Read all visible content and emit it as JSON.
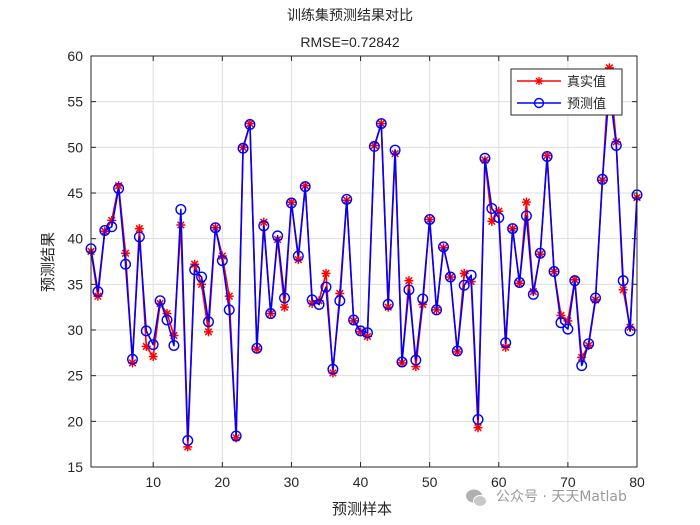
{
  "chart_data": {
    "type": "line",
    "title": "训练集预测结果对比",
    "subtitle": "RMSE=0.72842",
    "xlabel": "预测样本",
    "ylabel": "预测结果",
    "xlim": [
      1,
      80
    ],
    "ylim": [
      15,
      60
    ],
    "xticks": [
      10,
      20,
      30,
      40,
      50,
      60,
      70,
      80
    ],
    "yticks": [
      15,
      20,
      25,
      30,
      35,
      40,
      45,
      50,
      55,
      60
    ],
    "grid": true,
    "legend_position": "top-right",
    "x": [
      1,
      2,
      3,
      4,
      5,
      6,
      7,
      8,
      9,
      10,
      11,
      12,
      13,
      14,
      15,
      16,
      17,
      18,
      19,
      20,
      21,
      22,
      23,
      24,
      25,
      26,
      27,
      28,
      29,
      30,
      31,
      32,
      33,
      34,
      35,
      36,
      37,
      38,
      39,
      40,
      41,
      42,
      43,
      44,
      45,
      46,
      47,
      48,
      49,
      50,
      51,
      52,
      53,
      54,
      55,
      56,
      57,
      58,
      59,
      60,
      61,
      62,
      63,
      64,
      65,
      66,
      67,
      68,
      69,
      70,
      71,
      72,
      73,
      74,
      75,
      76,
      77,
      78,
      79,
      80
    ],
    "series": [
      {
        "name": "真实值",
        "color": "#ff0000",
        "marker": "asterisk",
        "values": [
          38.6,
          33.7,
          40.8,
          42.0,
          45.8,
          38.4,
          26.4,
          41.1,
          28.2,
          27.1,
          32.9,
          31.8,
          29.4,
          41.5,
          17.2,
          37.2,
          35.0,
          29.8,
          41.2,
          38.1,
          33.7,
          18.2,
          50.0,
          52.6,
          27.9,
          41.8,
          31.8,
          39.9,
          32.5,
          44.0,
          37.7,
          45.8,
          32.9,
          33.2,
          36.2,
          25.3,
          34.0,
          44.2,
          31.0,
          29.8,
          29.3,
          50.2,
          52.6,
          32.5,
          49.3,
          26.4,
          35.4,
          26.0,
          32.8,
          42.1,
          32.2,
          39.0,
          35.8,
          27.6,
          36.2,
          35.3,
          19.3,
          48.6,
          41.9,
          43.0,
          28.1,
          41.1,
          35.1,
          44.0,
          34.2,
          38.3,
          49.1,
          36.4,
          31.6,
          31.0,
          35.5,
          27.0,
          28.3,
          33.3,
          46.4,
          58.7,
          50.6,
          34.4,
          30.3,
          44.5
        ]
      },
      {
        "name": "预测值",
        "color": "#0000ff",
        "marker": "circle",
        "values": [
          38.9,
          34.2,
          40.9,
          41.3,
          45.5,
          37.2,
          26.8,
          40.2,
          29.9,
          28.4,
          33.2,
          31.1,
          28.3,
          43.2,
          17.9,
          36.6,
          35.8,
          30.9,
          41.2,
          37.6,
          32.2,
          18.4,
          49.9,
          52.5,
          28.0,
          41.4,
          31.8,
          40.3,
          33.5,
          43.9,
          38.1,
          45.7,
          33.3,
          32.8,
          34.7,
          25.7,
          33.2,
          44.3,
          31.1,
          29.9,
          29.7,
          50.1,
          52.6,
          32.8,
          49.7,
          26.5,
          34.4,
          26.7,
          33.4,
          42.1,
          32.2,
          39.1,
          35.8,
          27.7,
          34.9,
          36.0,
          20.2,
          48.8,
          43.3,
          42.3,
          28.6,
          41.1,
          35.2,
          42.5,
          33.9,
          38.4,
          49.0,
          36.4,
          30.8,
          30.1,
          35.4,
          26.1,
          28.5,
          33.5,
          46.5,
          56.5,
          50.2,
          35.4,
          29.9,
          44.8
        ]
      }
    ]
  },
  "watermark": "公众号 · 天天Matlab"
}
